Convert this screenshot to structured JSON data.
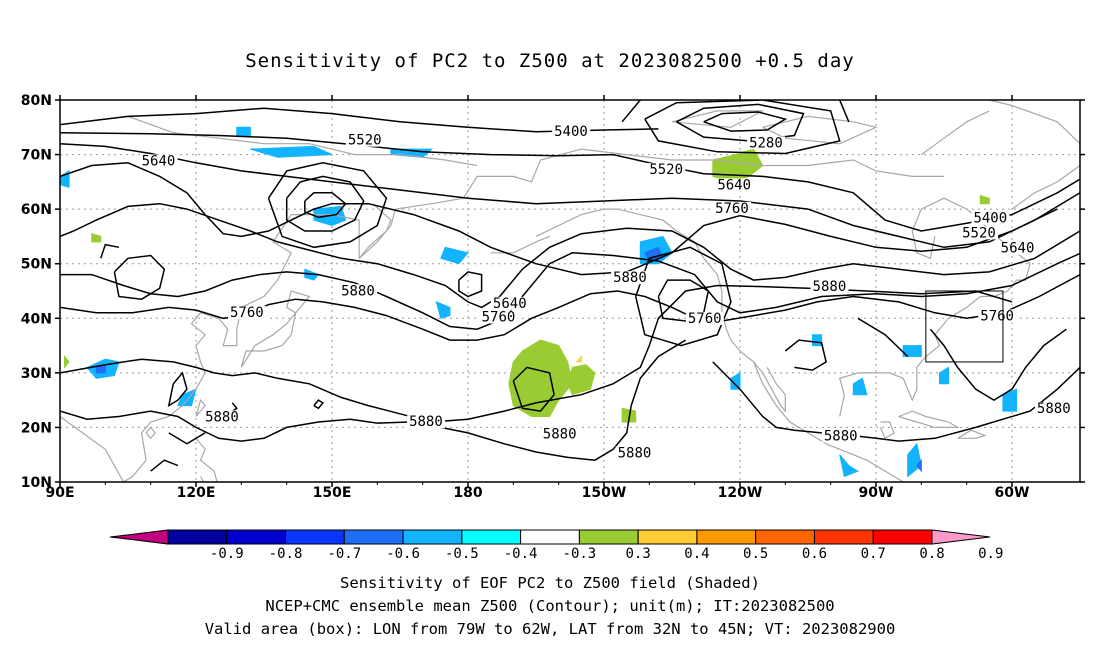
{
  "title": "Sensitivity of PC2 to Z500 at 2023082500 +0.5 day",
  "captions": [
    "Sensitivity of EOF PC2 to Z500 field (Shaded)",
    "NCEP+CMC ensemble mean Z500 (Contour); unit(m); IT:2023082500",
    "Valid area (box): LON from 79W to 62W, LAT from 32N to 45N; VT: 2023082900"
  ],
  "map": {
    "lat_ticks": [
      "10N",
      "20N",
      "30N",
      "40N",
      "50N",
      "60N",
      "70N",
      "80N"
    ],
    "lon_ticks": [
      "90E",
      "120E",
      "150E",
      "180",
      "150W",
      "120W",
      "90W",
      "60W"
    ],
    "valid_box": {
      "lon": [
        -79,
        -62
      ],
      "lat": [
        32,
        45
      ]
    },
    "contour_levels": [
      "5280",
      "5400",
      "5520",
      "5640",
      "5760",
      "5880"
    ]
  },
  "contour_labels": [
    {
      "text": "5640",
      "lon": 108,
      "lat": 68.2
    },
    {
      "text": "5520",
      "lon": 153.5,
      "lat": 72
    },
    {
      "text": "5400",
      "lon": -161,
      "lat": 73.6
    },
    {
      "text": "5280",
      "lon": -118,
      "lat": 71.5
    },
    {
      "text": "5520",
      "lon": -140,
      "lat": 66.6
    },
    {
      "text": "5640",
      "lon": -125,
      "lat": 63.8
    },
    {
      "text": "5760",
      "lon": -125.5,
      "lat": 59.5
    },
    {
      "text": "5400",
      "lon": -68.5,
      "lat": 57.7
    },
    {
      "text": "5520",
      "lon": -71,
      "lat": 55
    },
    {
      "text": "5640",
      "lon": -62.5,
      "lat": 52.2
    },
    {
      "text": "5760",
      "lon": -67,
      "lat": 39.8
    },
    {
      "text": "5880",
      "lon": 152,
      "lat": 44.4
    },
    {
      "text": "5760",
      "lon": 127.5,
      "lat": 40.4
    },
    {
      "text": "5640",
      "lon": -174.5,
      "lat": 42.1
    },
    {
      "text": "5760",
      "lon": -177,
      "lat": 39.6
    },
    {
      "text": "5880",
      "lon": -148,
      "lat": 46.8
    },
    {
      "text": "5760",
      "lon": -131.5,
      "lat": 39.3
    },
    {
      "text": "5880",
      "lon": -104,
      "lat": 45.2
    },
    {
      "text": "5880",
      "lon": 122,
      "lat": 21.3
    },
    {
      "text": "5880",
      "lon": 167,
      "lat": 20.4
    },
    {
      "text": "5880",
      "lon": -163.5,
      "lat": 18.2
    },
    {
      "text": "5880",
      "lon": -147,
      "lat": 14.7
    },
    {
      "text": "5880",
      "lon": -101.5,
      "lat": 17.8
    },
    {
      "text": "5880",
      "lon": -54.5,
      "lat": 22.8
    }
  ],
  "colorbar": {
    "labels": [
      "-0.9",
      "-0.8",
      "-0.7",
      "-0.6",
      "-0.5",
      "-0.4",
      "-0.3",
      "0.3",
      "0.4",
      "0.5",
      "0.6",
      "0.7",
      "0.8",
      "0.9"
    ],
    "colors": [
      "#c0007f",
      "#0000a0",
      "#0000cd",
      "#0a35ff",
      "#1e6ff5",
      "#12b3ff",
      "#00ffff",
      "#ffffff",
      "#99cc33",
      "#ffcc33",
      "#ff9900",
      "#ff6600",
      "#ff3300",
      "#ff0000",
      "#ff99cc"
    ]
  }
}
